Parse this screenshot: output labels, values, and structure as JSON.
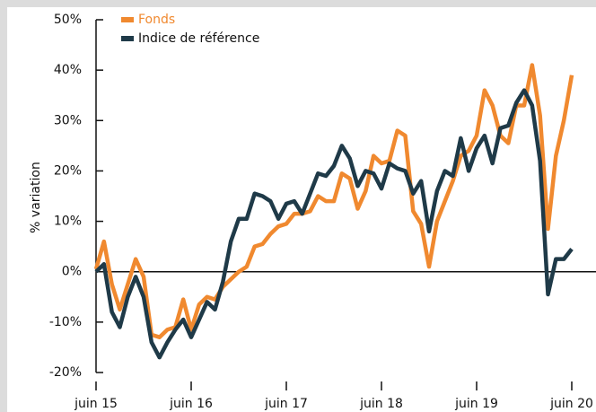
{
  "chart_data": {
    "type": "line",
    "y_label": "% variation",
    "categories": [
      "juin 15",
      null,
      null,
      null,
      null,
      null,
      null,
      null,
      null,
      null,
      null,
      null,
      "juin 16",
      null,
      null,
      null,
      null,
      null,
      null,
      null,
      null,
      null,
      null,
      null,
      "juin 17",
      null,
      null,
      null,
      null,
      null,
      null,
      null,
      null,
      null,
      null,
      null,
      "juin 18",
      null,
      null,
      null,
      null,
      null,
      null,
      null,
      null,
      null,
      null,
      null,
      "juin 19",
      null,
      null,
      null,
      null,
      null,
      null,
      null,
      null,
      null,
      null,
      null,
      "juin 20"
    ],
    "series": [
      {
        "name": "Fonds",
        "color": "#f0892f",
        "values": [
          0.5,
          6,
          -2.5,
          -7.5,
          -2.5,
          2.5,
          -1,
          -12.5,
          -13,
          -11.5,
          -11,
          -5.5,
          -11.5,
          -6.5,
          -5,
          -5.5,
          -3,
          -1.5,
          0,
          1,
          5,
          5.5,
          7.5,
          9,
          9.5,
          11.5,
          11.5,
          12,
          15,
          14,
          14,
          19.5,
          18.5,
          12.5,
          16,
          23,
          21.5,
          22,
          28,
          27,
          12,
          9.5,
          1,
          10,
          14,
          18,
          23,
          24,
          27,
          36,
          33,
          27,
          25.5,
          33,
          33,
          41,
          31,
          8.5,
          23,
          30,
          39
        ]
      },
      {
        "name": "Indice de référence",
        "color": "#1f3a48",
        "values": [
          0,
          1.5,
          -8,
          -11,
          -5,
          -1,
          -5,
          -14,
          -17,
          -14,
          -11.5,
          -9.5,
          -13,
          -9.5,
          -6,
          -7.5,
          -2,
          6,
          10.5,
          10.5,
          15.5,
          15,
          14,
          10.5,
          13.5,
          14,
          11.5,
          15.5,
          19.5,
          19,
          21,
          25,
          22.5,
          17,
          20,
          19.5,
          16.5,
          21.5,
          20.5,
          20,
          15.5,
          18,
          8,
          16,
          20,
          19,
          26.5,
          20,
          24.5,
          27,
          21.5,
          28.5,
          29,
          33.5,
          36,
          33,
          22,
          -4.5,
          2.5,
          2.5,
          4.5
        ]
      }
    ],
    "ylim": [
      -20,
      50
    ],
    "yticks": [
      {
        "value": -20,
        "label": "-20%"
      },
      {
        "value": -10,
        "label": "-10%"
      },
      {
        "value": 0,
        "label": "0%"
      },
      {
        "value": 10,
        "label": "10%"
      },
      {
        "value": 20,
        "label": "20%"
      },
      {
        "value": 30,
        "label": "30%"
      },
      {
        "value": 40,
        "label": "40%"
      },
      {
        "value": 50,
        "label": "50%"
      }
    ]
  }
}
